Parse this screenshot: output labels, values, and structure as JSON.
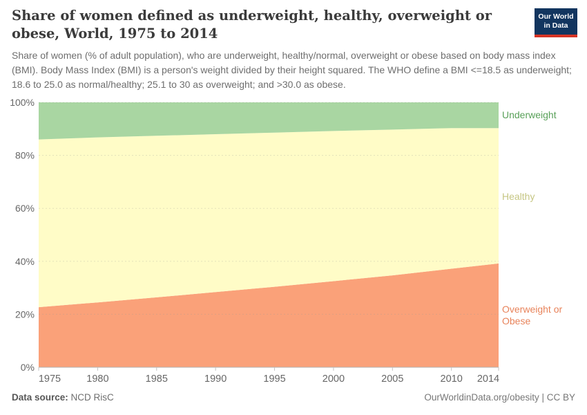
{
  "header": {
    "title": "Share of women defined as underweight, healthy, overweight or obese, World, 1975 to 2014",
    "subtitle": "Share of women (% of adult population), who are underweight, healthy/normal, overweight or obese based on body mass index (BMI). Body Mass Index (BMI) is a person's weight divided by their height squared. The WHO define a BMI <=18.5 as underweight; 18.6 to 25.0 as normal/healthy; 25.1 to 30 as overweight; and >30.0 as obese.",
    "logo": {
      "line1": "Our World",
      "line2": "in Data",
      "bg_color": "#12355f",
      "accent_color": "#d63425"
    }
  },
  "chart_data": {
    "type": "area",
    "stacked": true,
    "title": "Share of women defined as underweight, healthy, overweight or obese, World, 1975 to 2014",
    "xlabel": "",
    "ylabel": "",
    "x": [
      1975,
      1980,
      1985,
      1990,
      1995,
      2000,
      2005,
      2010,
      2014
    ],
    "series": [
      {
        "name": "Overweight or Obese",
        "slug": "overweight-or-obese",
        "color": "#faa179",
        "label_color": "#e8835a",
        "values": [
          22.7,
          24.5,
          26.4,
          28.4,
          30.4,
          32.5,
          34.7,
          37.2,
          39.2
        ]
      },
      {
        "name": "Healthy",
        "slug": "healthy",
        "color": "#fffcc7",
        "label_color": "#c6c683",
        "values": [
          63.3,
          62.3,
          61.0,
          59.6,
          58.2,
          56.7,
          55.0,
          53.1,
          51.1
        ]
      },
      {
        "name": "Underweight",
        "slug": "underweight",
        "color": "#a9d6a2",
        "label_color": "#58a058",
        "values": [
          14.0,
          13.2,
          12.6,
          12.0,
          11.4,
          10.8,
          10.3,
          9.7,
          9.7
        ]
      }
    ],
    "ylim": [
      0,
      100
    ],
    "yticks": [
      0,
      20,
      40,
      60,
      80,
      100
    ],
    "ytick_suffix": "%",
    "grid": "dashed-horizontal",
    "legend_position": "right-of-plot-labels",
    "axis_text_color": "#666666",
    "gridline_color": "#999999",
    "axis_line_color": "#b3b3b3"
  },
  "footer": {
    "source_label": "Data source:",
    "source_value": " NCD RisC",
    "link": "OurWorldinData.org/obesity",
    "separator": " | ",
    "license": "CC BY"
  }
}
